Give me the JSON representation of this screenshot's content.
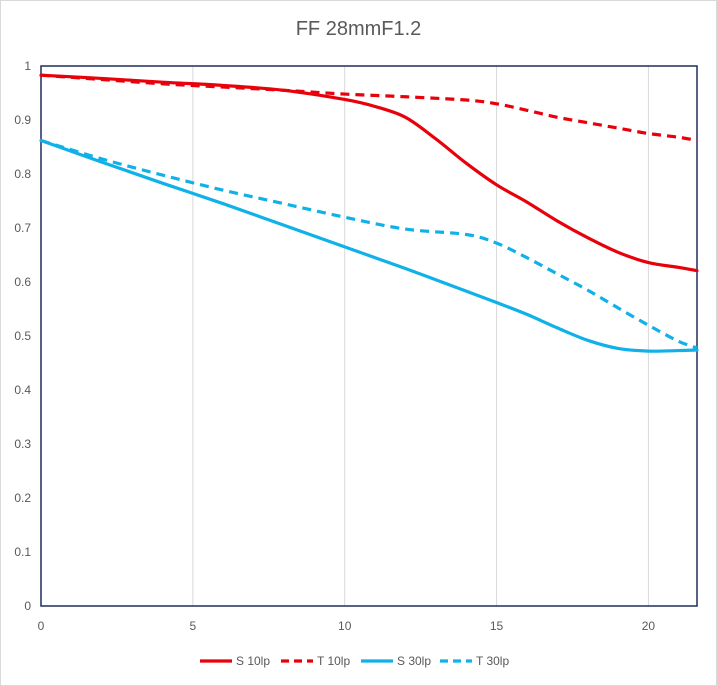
{
  "chart_data": {
    "type": "line",
    "title": "FF  28mmF1.2",
    "xlabel": "",
    "ylabel": "",
    "xlim": [
      0,
      21.6
    ],
    "ylim": [
      0,
      1
    ],
    "x_ticks": [
      0,
      5,
      10,
      15,
      20
    ],
    "y_ticks": [
      0,
      0.1,
      0.2,
      0.3,
      0.4,
      0.5,
      0.6,
      0.7,
      0.8,
      0.9,
      1
    ],
    "y_tick_labels": [
      "0",
      "0.1",
      "0.2",
      "0.3",
      "0.4",
      "0.5",
      "0.6",
      "0.7",
      "0.8",
      "0.9",
      "1"
    ],
    "grid": "vertical",
    "legend_position": "bottom",
    "series": [
      {
        "name": "S 10lp",
        "color": "#e8000b",
        "dash": "solid",
        "x": [
          0,
          2,
          4,
          6,
          8,
          10,
          11,
          12,
          13,
          14,
          15,
          16,
          17,
          18,
          19,
          20,
          21,
          21.6
        ],
        "y": [
          0.983,
          0.977,
          0.97,
          0.964,
          0.955,
          0.938,
          0.925,
          0.905,
          0.865,
          0.82,
          0.78,
          0.748,
          0.713,
          0.682,
          0.655,
          0.636,
          0.627,
          0.621
        ]
      },
      {
        "name": "T 10lp",
        "color": "#e8000b",
        "dash": "dashed",
        "x": [
          0,
          2,
          4,
          6,
          8,
          10,
          12,
          14,
          15,
          16,
          17,
          18,
          19,
          20,
          21,
          21.6
        ],
        "y": [
          0.983,
          0.975,
          0.967,
          0.961,
          0.955,
          0.948,
          0.943,
          0.937,
          0.93,
          0.918,
          0.905,
          0.895,
          0.885,
          0.875,
          0.868,
          0.862
        ]
      },
      {
        "name": "S 30lp",
        "color": "#10b1e8",
        "dash": "solid",
        "x": [
          0,
          2,
          4,
          6,
          8,
          10,
          12,
          14,
          15,
          16,
          17,
          18,
          19,
          20,
          21,
          21.6
        ],
        "y": [
          0.862,
          0.822,
          0.783,
          0.745,
          0.705,
          0.665,
          0.625,
          0.583,
          0.562,
          0.54,
          0.515,
          0.492,
          0.477,
          0.472,
          0.473,
          0.474
        ]
      },
      {
        "name": "T 30lp",
        "color": "#10b1e8",
        "dash": "dashed",
        "x": [
          0,
          2,
          4,
          6,
          8,
          10,
          12,
          14,
          15,
          16,
          17,
          18,
          19,
          20,
          21,
          21.6
        ],
        "y": [
          0.862,
          0.828,
          0.798,
          0.77,
          0.745,
          0.72,
          0.698,
          0.688,
          0.672,
          0.645,
          0.615,
          0.585,
          0.552,
          0.52,
          0.49,
          0.478
        ]
      }
    ]
  }
}
